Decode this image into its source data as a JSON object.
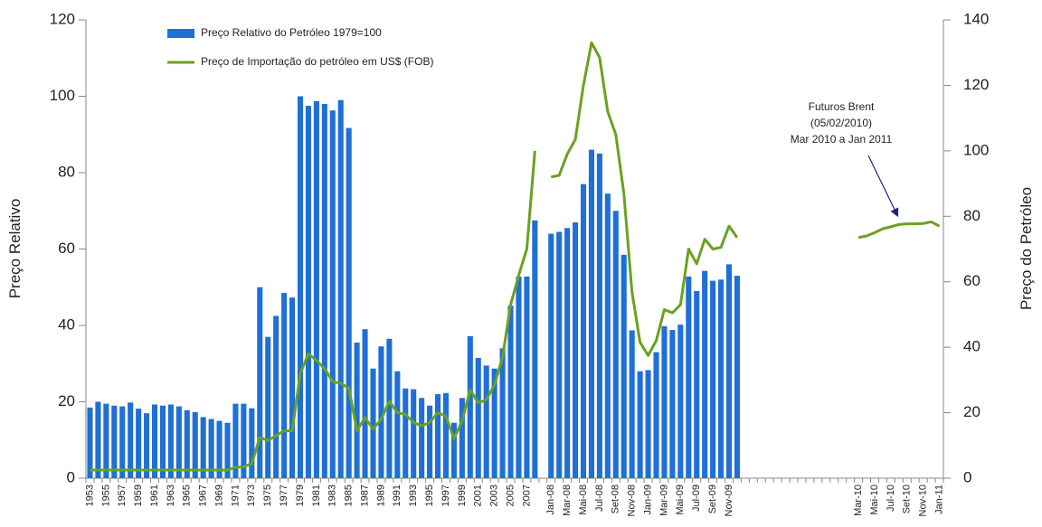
{
  "chart_data": {
    "type": "bar",
    "categories": [
      "1953",
      null,
      "1955",
      null,
      "1957",
      null,
      "1959",
      null,
      "1961",
      null,
      "1963",
      null,
      "1965",
      null,
      "1967",
      null,
      "1969",
      null,
      "1971",
      null,
      "1973",
      null,
      "1975",
      null,
      "1977",
      null,
      "1979",
      null,
      "1981",
      null,
      "1983",
      null,
      "1985",
      null,
      "1987",
      null,
      "1989",
      null,
      "1991",
      null,
      "1993",
      null,
      "1995",
      null,
      "1997",
      null,
      "1999",
      null,
      "2001",
      null,
      "2003",
      null,
      "2005",
      null,
      "2007",
      null,
      null,
      "Jan-08",
      null,
      "Mar-08",
      null,
      "Mai-08",
      null,
      "Jul-08",
      null,
      "Set-08",
      null,
      "Nov-08",
      null,
      "Jan-09",
      null,
      "Mar-09",
      null,
      "Mai-09",
      null,
      "Jul-09",
      null,
      "Set-09",
      null,
      "Nov-09",
      null,
      null,
      null,
      null,
      null,
      null,
      null,
      null,
      null,
      null,
      null,
      null,
      null,
      null,
      null,
      "Mar-10",
      null,
      "Mai-10",
      null,
      "Jul-10",
      null,
      "Set-10",
      null,
      "Nov-10",
      null,
      "Jan-11"
    ],
    "series": [
      {
        "name": "Preço Relativo do Petróleo 1979=100",
        "type": "bar",
        "axis": "y",
        "color": "#1f6fd6",
        "values": [
          18.5,
          20,
          19.5,
          19,
          18.8,
          19.8,
          18.2,
          17,
          19.3,
          19,
          19.3,
          18.8,
          17.8,
          17.3,
          16,
          15.5,
          15,
          14.5,
          19.5,
          19.5,
          18.3,
          50,
          37,
          42.5,
          48.5,
          47.3,
          100,
          97.5,
          98.7,
          98,
          96.3,
          99,
          91.7,
          35.5,
          39,
          28.7,
          34.5,
          36.5,
          28,
          23.5,
          23.3,
          21,
          19,
          22,
          22.3,
          14.5,
          21,
          37.2,
          31.5,
          29.5,
          28.7,
          34,
          45.2,
          52.8,
          52.8,
          67.5,
          null,
          64,
          64.5,
          65.5,
          67,
          77,
          86,
          85,
          74.5,
          70,
          58.5,
          38.7,
          28,
          28.3,
          33,
          39.8,
          38.8,
          40.2,
          52.8,
          49,
          54.3,
          51.7,
          52,
          56,
          53,
          null,
          null,
          null,
          null,
          null,
          null,
          null,
          null,
          null,
          null,
          null,
          null,
          null,
          null,
          null,
          null,
          null,
          null,
          null,
          null,
          null,
          null,
          null,
          null,
          null
        ]
      },
      {
        "name": "Preço de Importação do petróleo em US$ (FOB)",
        "type": "line",
        "axis": "y2",
        "color": "#6aa121",
        "values": [
          2.5,
          2.5,
          2.5,
          2.5,
          2.5,
          2.5,
          2.5,
          2.5,
          2.5,
          2.5,
          2.5,
          2.5,
          2.5,
          2.5,
          2.5,
          2.5,
          2.5,
          2.5,
          3.3,
          3.5,
          4.5,
          12.5,
          11.5,
          13,
          14.5,
          14.5,
          32,
          38,
          36,
          33.5,
          29.5,
          29,
          27.5,
          14.5,
          18.5,
          15,
          18,
          23.5,
          20,
          19.5,
          17,
          16,
          17,
          20,
          19,
          12,
          17.5,
          27,
          23,
          24,
          28.5,
          37,
          53,
          62,
          70,
          100,
          null,
          92,
          92.5,
          99,
          103.5,
          120,
          133,
          128.5,
          112,
          105,
          87,
          57,
          41.5,
          37.5,
          42,
          51.5,
          50.5,
          53,
          70,
          65.5,
          73,
          70,
          70.5,
          77,
          73.5,
          null,
          null,
          null,
          null,
          null,
          null,
          null,
          null,
          null,
          null,
          null,
          null,
          null,
          null,
          73.5,
          74,
          75,
          76.2,
          76.8,
          77.5,
          77.7,
          77.7,
          77.8,
          78.3,
          77
        ]
      }
    ],
    "ylabel": "Preço Relativo",
    "y2label": "Preço do Petróleo",
    "ylim": [
      0,
      120
    ],
    "yticks": [
      0,
      20,
      40,
      60,
      80,
      100,
      120
    ],
    "y2lim": [
      0,
      140
    ],
    "y2ticks": [
      0,
      20,
      40,
      60,
      80,
      100,
      120,
      140
    ],
    "annotation": [
      "Futuros Brent",
      "(05/02/2010)",
      "Mar 2010 a Jan 2011"
    ],
    "legend": "top-left",
    "grid": false
  }
}
